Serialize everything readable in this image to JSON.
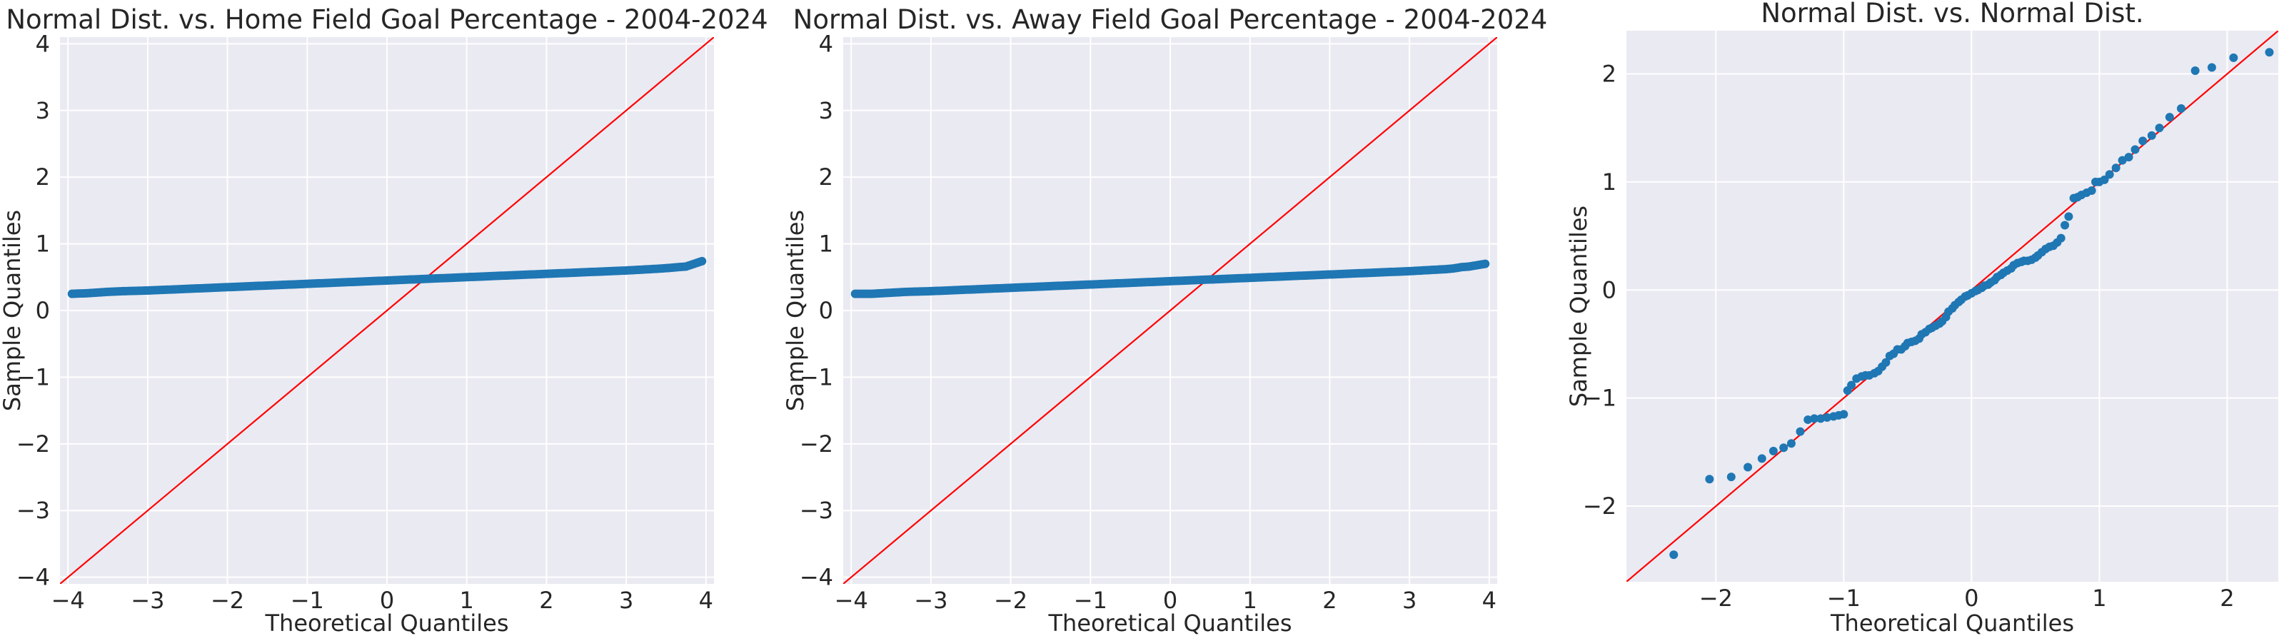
{
  "chart_data": [
    {
      "type": "scatter",
      "title": "Normal Dist. vs. Home Field Goal Percentage - 2004-2024",
      "xlabel": "Theoretical Quantiles",
      "ylabel": "Sample Quantiles",
      "xlim": [
        -4.1,
        4.1
      ],
      "ylim": [
        -4.1,
        4.1
      ],
      "xticks": [
        -4,
        -3,
        -2,
        -1,
        0,
        1,
        2,
        3,
        4
      ],
      "yticks": [
        -4,
        -3,
        -2,
        -1,
        0,
        1,
        2,
        3,
        4
      ],
      "grid": true,
      "reference_line": {
        "slope": 1,
        "intercept": 0,
        "color": "#ff0000"
      },
      "point_color": "#1f77b4",
      "background": "#eaeaf2",
      "points": [
        [
          -3.95,
          0.25
        ],
        [
          -3.75,
          0.26
        ],
        [
          -3.62,
          0.27
        ],
        [
          -3.5,
          0.28
        ],
        [
          -3.4,
          0.285
        ],
        [
          -3.3,
          0.29
        ],
        [
          -3.0,
          0.3
        ],
        [
          -2.6,
          0.32
        ],
        [
          -2.2,
          0.34
        ],
        [
          -1.8,
          0.36
        ],
        [
          -1.4,
          0.38
        ],
        [
          -1.0,
          0.4
        ],
        [
          -0.6,
          0.42
        ],
        [
          -0.2,
          0.44
        ],
        [
          0.2,
          0.46
        ],
        [
          0.6,
          0.48
        ],
        [
          1.0,
          0.5
        ],
        [
          1.4,
          0.52
        ],
        [
          1.8,
          0.54
        ],
        [
          2.2,
          0.56
        ],
        [
          2.6,
          0.58
        ],
        [
          3.0,
          0.6
        ],
        [
          3.3,
          0.62
        ],
        [
          3.45,
          0.63
        ],
        [
          3.55,
          0.64
        ],
        [
          3.65,
          0.65
        ],
        [
          3.75,
          0.66
        ],
        [
          3.95,
          0.74
        ]
      ]
    },
    {
      "type": "scatter",
      "title": "Normal Dist. vs. Away Field Goal Percentage - 2004-2024",
      "xlabel": "Theoretical Quantiles",
      "ylabel": "Sample Quantiles",
      "xlim": [
        -4.1,
        4.1
      ],
      "ylim": [
        -4.1,
        4.1
      ],
      "xticks": [
        -4,
        -3,
        -2,
        -1,
        0,
        1,
        2,
        3,
        4
      ],
      "yticks": [
        -4,
        -3,
        -2,
        -1,
        0,
        1,
        2,
        3,
        4
      ],
      "grid": true,
      "reference_line": {
        "slope": 1,
        "intercept": 0,
        "color": "#ff0000"
      },
      "point_color": "#1f77b4",
      "background": "#eaeaf2",
      "points": [
        [
          -3.95,
          0.25
        ],
        [
          -3.75,
          0.25
        ],
        [
          -3.6,
          0.26
        ],
        [
          -3.45,
          0.27
        ],
        [
          -3.3,
          0.28
        ],
        [
          -3.0,
          0.29
        ],
        [
          -2.6,
          0.31
        ],
        [
          -2.2,
          0.33
        ],
        [
          -1.8,
          0.35
        ],
        [
          -1.4,
          0.37
        ],
        [
          -1.0,
          0.39
        ],
        [
          -0.6,
          0.41
        ],
        [
          -0.2,
          0.43
        ],
        [
          0.2,
          0.45
        ],
        [
          0.6,
          0.47
        ],
        [
          1.0,
          0.49
        ],
        [
          1.4,
          0.51
        ],
        [
          1.8,
          0.53
        ],
        [
          2.2,
          0.55
        ],
        [
          2.6,
          0.57
        ],
        [
          3.0,
          0.59
        ],
        [
          3.3,
          0.61
        ],
        [
          3.45,
          0.62
        ],
        [
          3.55,
          0.63
        ],
        [
          3.65,
          0.65
        ],
        [
          3.75,
          0.66
        ],
        [
          3.95,
          0.7
        ]
      ]
    },
    {
      "type": "scatter",
      "title": "Normal Dist. vs. Normal Dist.",
      "xlabel": "Theoretical Quantiles",
      "ylabel": "Sample Quantiles",
      "xlim": [
        -2.7,
        2.4
      ],
      "ylim": [
        -2.7,
        2.4
      ],
      "xticks": [
        -2,
        -1,
        0,
        1,
        2
      ],
      "yticks": [
        -2,
        -1,
        0,
        1,
        2
      ],
      "grid": true,
      "reference_line": {
        "slope": 1,
        "intercept": 0,
        "color": "#ff0000"
      },
      "point_color": "#1f77b4",
      "background": "#eaeaf2",
      "points": [
        [
          -2.33,
          -2.45
        ],
        [
          -2.05,
          -1.75
        ],
        [
          -1.88,
          -1.73
        ],
        [
          -1.75,
          -1.64
        ],
        [
          -1.64,
          -1.56
        ],
        [
          -1.55,
          -1.49
        ],
        [
          -1.47,
          -1.46
        ],
        [
          -1.41,
          -1.42
        ],
        [
          -1.34,
          -1.31
        ],
        [
          -1.28,
          -1.2
        ],
        [
          -1.23,
          -1.19
        ],
        [
          -1.18,
          -1.19
        ],
        [
          -1.13,
          -1.18
        ],
        [
          -1.08,
          -1.17
        ],
        [
          -1.04,
          -1.16
        ],
        [
          -1.0,
          -1.15
        ],
        [
          -0.97,
          -0.93
        ],
        [
          -0.94,
          -0.88
        ],
        [
          -0.9,
          -0.82
        ],
        [
          -0.86,
          -0.8
        ],
        [
          -0.83,
          -0.79
        ],
        [
          -0.8,
          -0.79
        ],
        [
          -0.76,
          -0.77
        ],
        [
          -0.73,
          -0.75
        ],
        [
          -0.7,
          -0.71
        ],
        [
          -0.67,
          -0.67
        ],
        [
          -0.64,
          -0.61
        ],
        [
          -0.61,
          -0.59
        ],
        [
          -0.58,
          -0.55
        ],
        [
          -0.55,
          -0.55
        ],
        [
          -0.52,
          -0.52
        ],
        [
          -0.5,
          -0.49
        ],
        [
          -0.47,
          -0.48
        ],
        [
          -0.44,
          -0.47
        ],
        [
          -0.41,
          -0.45
        ],
        [
          -0.39,
          -0.41
        ],
        [
          -0.36,
          -0.39
        ],
        [
          -0.33,
          -0.36
        ],
        [
          -0.31,
          -0.35
        ],
        [
          -0.28,
          -0.33
        ],
        [
          -0.25,
          -0.31
        ],
        [
          -0.23,
          -0.29
        ],
        [
          -0.2,
          -0.25
        ],
        [
          -0.18,
          -0.2
        ],
        [
          -0.15,
          -0.17
        ],
        [
          -0.13,
          -0.14
        ],
        [
          -0.1,
          -0.11
        ],
        [
          -0.08,
          -0.09
        ],
        [
          -0.05,
          -0.06
        ],
        [
          -0.03,
          -0.05
        ],
        [
          0.0,
          -0.03
        ],
        [
          0.03,
          -0.01
        ],
        [
          0.05,
          0.0
        ],
        [
          0.08,
          0.02
        ],
        [
          0.1,
          0.04
        ],
        [
          0.13,
          0.05
        ],
        [
          0.15,
          0.07
        ],
        [
          0.18,
          0.09
        ],
        [
          0.2,
          0.12
        ],
        [
          0.23,
          0.14
        ],
        [
          0.25,
          0.16
        ],
        [
          0.28,
          0.18
        ],
        [
          0.31,
          0.2
        ],
        [
          0.33,
          0.23
        ],
        [
          0.36,
          0.25
        ],
        [
          0.39,
          0.26
        ],
        [
          0.41,
          0.27
        ],
        [
          0.44,
          0.27
        ],
        [
          0.47,
          0.28
        ],
        [
          0.5,
          0.3
        ],
        [
          0.52,
          0.32
        ],
        [
          0.55,
          0.35
        ],
        [
          0.58,
          0.38
        ],
        [
          0.61,
          0.4
        ],
        [
          0.64,
          0.41
        ],
        [
          0.67,
          0.44
        ],
        [
          0.7,
          0.48
        ],
        [
          0.73,
          0.6
        ],
        [
          0.76,
          0.68
        ],
        [
          0.8,
          0.85
        ],
        [
          0.83,
          0.86
        ],
        [
          0.86,
          0.88
        ],
        [
          0.9,
          0.9
        ],
        [
          0.94,
          0.92
        ],
        [
          0.97,
          1.0
        ],
        [
          1.0,
          1.0
        ],
        [
          1.04,
          1.02
        ],
        [
          1.08,
          1.07
        ],
        [
          1.13,
          1.13
        ],
        [
          1.18,
          1.2
        ],
        [
          1.23,
          1.23
        ],
        [
          1.28,
          1.3
        ],
        [
          1.34,
          1.38
        ],
        [
          1.41,
          1.43
        ],
        [
          1.47,
          1.5
        ],
        [
          1.55,
          1.6
        ],
        [
          1.64,
          1.68
        ],
        [
          1.75,
          2.03
        ],
        [
          1.88,
          2.06
        ],
        [
          2.05,
          2.15
        ],
        [
          2.33,
          2.2
        ]
      ]
    }
  ]
}
